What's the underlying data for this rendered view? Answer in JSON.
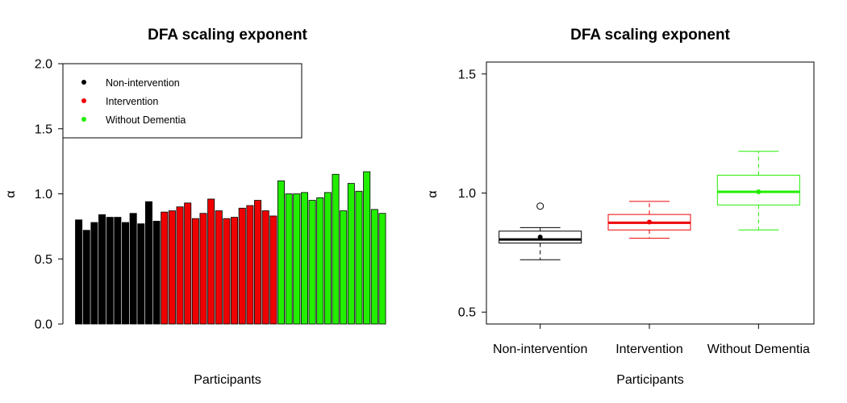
{
  "chart_data": [
    {
      "type": "bar",
      "title": "DFA scaling exponent",
      "xlabel": "Participants",
      "ylabel": "α",
      "ylim": [
        0,
        2
      ],
      "yticks": [
        "0.0",
        "0.5",
        "1.0",
        "1.5",
        "2.0"
      ],
      "legend": {
        "placement": "top-left",
        "entries": [
          {
            "name": "Non-intervention",
            "color": "#000000"
          },
          {
            "name": "Intervention",
            "color": "#ee0000"
          },
          {
            "name": "Without Dementia",
            "color": "#22ee00"
          }
        ]
      },
      "series": [
        {
          "name": "Non-intervention",
          "color": "#000000",
          "values": [
            0.8,
            0.72,
            0.78,
            0.84,
            0.82,
            0.82,
            0.78,
            0.85,
            0.77,
            0.94,
            0.79
          ]
        },
        {
          "name": "Intervention",
          "color": "#ee0000",
          "values": [
            0.86,
            0.87,
            0.9,
            0.93,
            0.81,
            0.85,
            0.96,
            0.87,
            0.81,
            0.82,
            0.89,
            0.91,
            0.95,
            0.87,
            0.83
          ]
        },
        {
          "name": "Without Dementia",
          "color": "#22ee00",
          "values": [
            1.1,
            1.0,
            1.0,
            1.01,
            0.95,
            0.97,
            1.01,
            1.15,
            0.87,
            1.08,
            1.02,
            1.17,
            0.88,
            0.85
          ]
        }
      ]
    },
    {
      "type": "box",
      "title": "DFA scaling exponent",
      "xlabel": "Participants",
      "ylabel": "α",
      "ylim": [
        0.45,
        1.55
      ],
      "yticks": [
        "0.5",
        "1.0",
        "1.5"
      ],
      "categories": [
        "Non-intervention",
        "Intervention",
        "Without Dementia"
      ],
      "boxes": [
        {
          "name": "Non-intervention",
          "color": "#000000",
          "whisker_low": 0.72,
          "q1": 0.79,
          "median": 0.805,
          "q3": 0.84,
          "whisker_high": 0.855,
          "mean": 0.815,
          "outliers": [
            0.945
          ]
        },
        {
          "name": "Intervention",
          "color": "#ee0000",
          "whisker_low": 0.81,
          "q1": 0.845,
          "median": 0.875,
          "q3": 0.91,
          "whisker_high": 0.965,
          "mean": 0.878,
          "outliers": []
        },
        {
          "name": "Without Dementia",
          "color": "#22ee00",
          "whisker_low": 0.845,
          "q1": 0.95,
          "median": 1.005,
          "q3": 1.075,
          "whisker_high": 1.175,
          "mean": 1.005,
          "outliers": []
        }
      ]
    }
  ]
}
